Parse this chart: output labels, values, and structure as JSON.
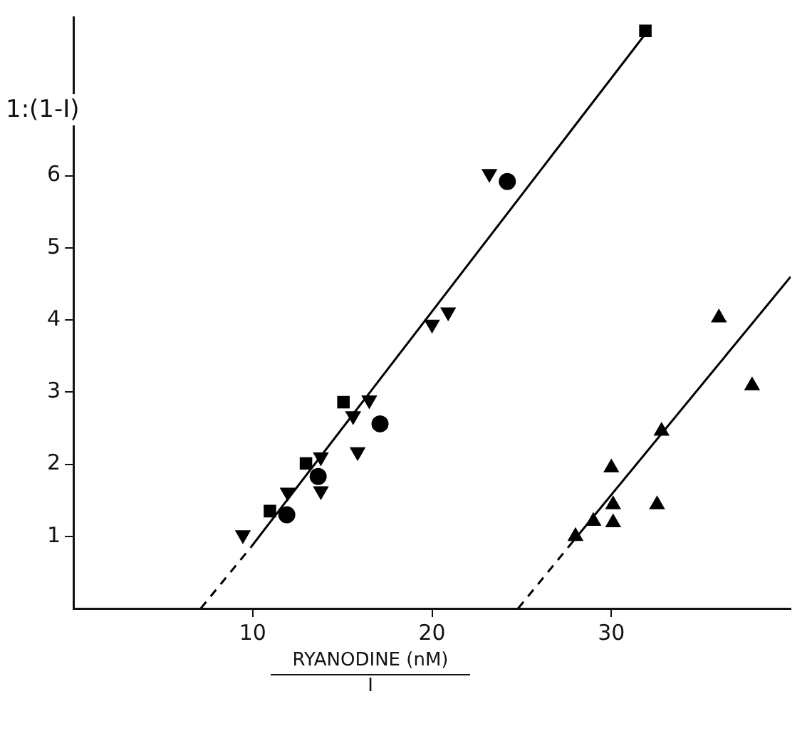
{
  "chart_data": {
    "type": "scatter",
    "xlabel": "RYANODINE (nM)",
    "annotations": [
      "I"
    ],
    "ylabel": "1:(1-I)",
    "xlim": [
      0,
      40
    ],
    "ylim": [
      0,
      8.2
    ],
    "xticks": [
      10,
      20,
      30
    ],
    "yticks": [
      1,
      2,
      3,
      4,
      5,
      6
    ],
    "grid": false,
    "legend": false,
    "series": [
      {
        "marker": "triangle_down",
        "color": "#000000",
        "x": [
          9.45,
          11.95,
          13.8,
          13.8,
          15.6,
          16.5,
          15.85,
          23.2,
          20.0,
          20.9
        ],
        "values": [
          1.02,
          1.61,
          2.1,
          1.63,
          2.67,
          2.89,
          2.17,
          6.03,
          3.94,
          4.11
        ]
      },
      {
        "marker": "square",
        "color": "#000000",
        "x": [
          10.96,
          12.97,
          15.06,
          31.9
        ],
        "values": [
          1.35,
          2.01,
          2.86,
          8.01
        ]
      },
      {
        "marker": "circle",
        "color": "#000000",
        "x": [
          11.9,
          13.65,
          17.1,
          24.2
        ],
        "values": [
          1.3,
          1.83,
          2.56,
          5.92
        ]
      },
      {
        "marker": "triangle",
        "color": "#000000",
        "x": [
          28.0,
          29.0,
          30.1,
          30.1,
          30.0,
          32.55,
          32.8,
          36.0,
          37.85
        ],
        "values": [
          1.0,
          1.21,
          1.19,
          1.44,
          1.95,
          1.44,
          2.46,
          4.03,
          3.09
        ]
      },
      {
        "type": "line",
        "line_style": "dashed",
        "color": "#000000",
        "x": [
          7.1,
          9.9
        ],
        "values": [
          0,
          0.85
        ]
      },
      {
        "type": "line",
        "line_style": "solid",
        "color": "#000000",
        "x": [
          9.9,
          32
        ],
        "values": [
          0.85,
          8.0
        ]
      },
      {
        "type": "line",
        "line_style": "dashed",
        "color": "#000000",
        "x": [
          24.8,
          27.6
        ],
        "values": [
          0,
          0.85
        ]
      },
      {
        "type": "line",
        "line_style": "solid",
        "color": "#000000",
        "x": [
          27.6,
          40
        ],
        "values": [
          0.85,
          4.6
        ]
      }
    ]
  }
}
